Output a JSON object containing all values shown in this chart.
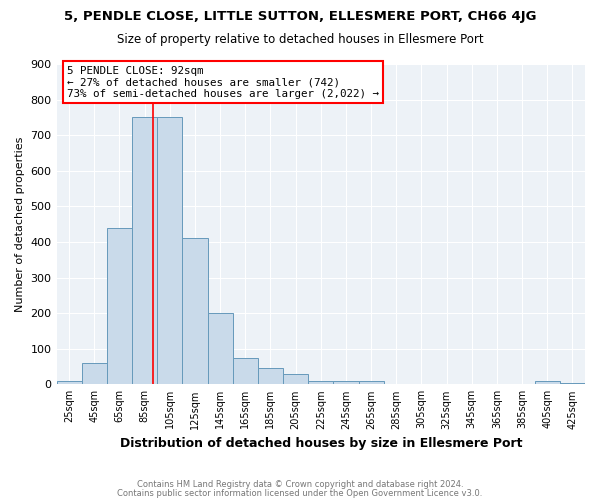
{
  "title": "5, PENDLE CLOSE, LITTLE SUTTON, ELLESMERE PORT, CH66 4JG",
  "subtitle": "Size of property relative to detached houses in Ellesmere Port",
  "xlabel": "Distribution of detached houses by size in Ellesmere Port",
  "ylabel": "Number of detached properties",
  "bar_color": "#c9daea",
  "bar_edge_color": "#6699bb",
  "bg_color": "#edf2f7",
  "grid_color": "white",
  "bin_edges": [
    15,
    35,
    55,
    75,
    95,
    115,
    135,
    155,
    175,
    195,
    215,
    235,
    255,
    275,
    295,
    315,
    335,
    355,
    375,
    395,
    415,
    435
  ],
  "bin_labels": [
    "25sqm",
    "45sqm",
    "65sqm",
    "85sqm",
    "105sqm",
    "125sqm",
    "145sqm",
    "165sqm",
    "185sqm",
    "205sqm",
    "225sqm",
    "245sqm",
    "265sqm",
    "285sqm",
    "305sqm",
    "325sqm",
    "345sqm",
    "365sqm",
    "385sqm",
    "405sqm",
    "425sqm"
  ],
  "bar_heights": [
    10,
    60,
    440,
    750,
    750,
    410,
    200,
    75,
    45,
    30,
    10,
    10,
    10,
    0,
    0,
    0,
    0,
    0,
    0,
    10,
    5
  ],
  "red_line_x": 92,
  "annotation_lines": [
    "5 PENDLE CLOSE: 92sqm",
    "← 27% of detached houses are smaller (742)",
    "73% of semi-detached houses are larger (2,022) →"
  ],
  "ylim": [
    0,
    900
  ],
  "yticks": [
    0,
    100,
    200,
    300,
    400,
    500,
    600,
    700,
    800,
    900
  ],
  "footer_lines": [
    "Contains HM Land Registry data © Crown copyright and database right 2024.",
    "Contains public sector information licensed under the Open Government Licence v3.0."
  ]
}
